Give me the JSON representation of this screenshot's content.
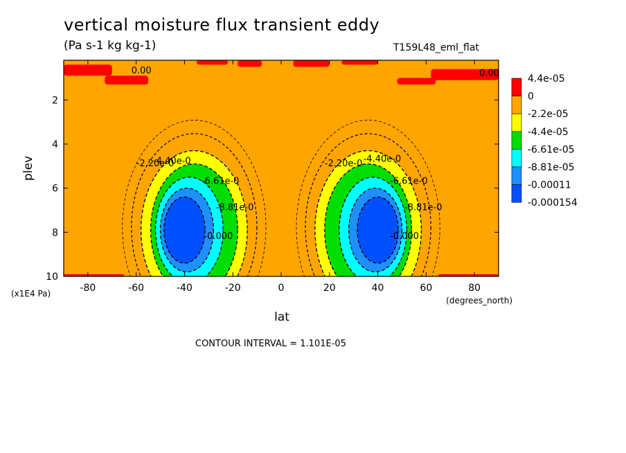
{
  "title": "vertical moisture flux transient eddy",
  "units": "(Pa s-1 kg kg-1)",
  "run_id": "T159L48_eml_flat",
  "contour_note": "CONTOUR INTERVAL = 1.101E-05",
  "chart_data": {
    "type": "heatmap",
    "xlabel": "lat",
    "ylabel": "plev",
    "x_unit": "(degrees_north)",
    "y_unit": "(x1E4 Pa)",
    "xlim": [
      -90,
      90
    ],
    "ylim": [
      10,
      0.2
    ],
    "x_ticks": [
      -80,
      -60,
      -40,
      -20,
      0,
      20,
      40,
      60,
      80
    ],
    "x_tick_labels": [
      "-80",
      "-60",
      "-40",
      "-20",
      "0",
      "20",
      "40",
      "60",
      "80"
    ],
    "y_ticks": [
      2,
      4,
      6,
      8,
      10
    ],
    "y_tick_labels": [
      "2",
      "4",
      "6",
      "8",
      "10"
    ],
    "colorbar": {
      "colors": [
        "#ff0000",
        "#ffa500",
        "#ffff00",
        "#00dd00",
        "#00ffff",
        "#1e90ff",
        "#0050ff"
      ],
      "labels": [
        "4.4e-05",
        "0",
        "-2.2e-05",
        "-4.4e-05",
        "-6.61e-05",
        "-8.81e-05",
        "-0.00011",
        "-0.000154"
      ]
    },
    "background_level": 1,
    "cells": [
      {
        "center_lat": -36,
        "center_plev": 7.9,
        "dlat": 22,
        "dlev": 3.6,
        "level": 2
      },
      {
        "center_lat": -36,
        "center_plev": 7.9,
        "dlat": 18,
        "dlev": 3.0,
        "level": 3
      },
      {
        "center_lat": -38,
        "center_plev": 7.9,
        "dlat": 14,
        "dlev": 2.4,
        "level": 4
      },
      {
        "center_lat": -39,
        "center_plev": 7.9,
        "dlat": 11,
        "dlev": 1.9,
        "level": 5
      },
      {
        "center_lat": -40,
        "center_plev": 7.9,
        "dlat": 8.5,
        "dlev": 1.5,
        "level": 6
      },
      {
        "center_lat": 36,
        "center_plev": 7.9,
        "dlat": 22,
        "dlev": 3.6,
        "level": 2
      },
      {
        "center_lat": 36,
        "center_plev": 7.9,
        "dlat": 18,
        "dlev": 3.0,
        "level": 3
      },
      {
        "center_lat": 38,
        "center_plev": 7.9,
        "dlat": 14,
        "dlev": 2.4,
        "level": 4
      },
      {
        "center_lat": 39,
        "center_plev": 7.9,
        "dlat": 11,
        "dlev": 1.9,
        "level": 5
      },
      {
        "center_lat": 40,
        "center_plev": 7.9,
        "dlat": 8.5,
        "dlev": 1.5,
        "level": 6
      }
    ],
    "positive_regions": [
      {
        "lat_from": -90,
        "lat_to": -70,
        "plev_from": 0.4,
        "plev_to": 0.9
      },
      {
        "lat_from": -73,
        "lat_to": -55,
        "plev_from": 0.9,
        "plev_to": 1.3
      },
      {
        "lat_from": -35,
        "lat_to": -22,
        "plev_from": 0.2,
        "plev_to": 0.4
      },
      {
        "lat_from": -18,
        "lat_to": -8,
        "plev_from": 0.2,
        "plev_to": 0.5
      },
      {
        "lat_from": 5,
        "lat_to": 20,
        "plev_from": 0.2,
        "plev_to": 0.5
      },
      {
        "lat_from": 25,
        "lat_to": 40,
        "plev_from": 0.2,
        "plev_to": 0.4
      },
      {
        "lat_from": 48,
        "lat_to": 64,
        "plev_from": 1.0,
        "plev_to": 1.3
      },
      {
        "lat_from": 62,
        "lat_to": 90,
        "plev_from": 0.6,
        "plev_to": 1.1
      },
      {
        "lat_from": -90,
        "lat_to": -65,
        "plev_from": 9.9,
        "plev_to": 10
      },
      {
        "lat_from": 65,
        "lat_to": 90,
        "plev_from": 9.9,
        "plev_to": 10
      }
    ],
    "contour_labels": [
      {
        "text": "0.00",
        "lat": -62,
        "plev": 0.8
      },
      {
        "text": "0.00",
        "lat": 82,
        "plev": 0.9
      },
      {
        "text": "-2.20e-0",
        "lat": -60,
        "plev": 5.0
      },
      {
        "text": "-4.40e-0",
        "lat": -53,
        "plev": 4.9
      },
      {
        "text": "-6.61e-0",
        "lat": -33,
        "plev": 5.8
      },
      {
        "text": "-8.81e-0",
        "lat": -27,
        "plev": 7.0
      },
      {
        "text": "-0.000",
        "lat": -32,
        "plev": 8.3
      },
      {
        "text": "-2.20e-0",
        "lat": 18,
        "plev": 5.0
      },
      {
        "text": "-4.40e-0",
        "lat": 34,
        "plev": 4.8
      },
      {
        "text": "-6.61e-0",
        "lat": 45,
        "plev": 5.8
      },
      {
        "text": "-8.81e-0",
        "lat": 51,
        "plev": 7.0
      },
      {
        "text": "-0.000",
        "lat": 45,
        "plev": 8.3
      }
    ]
  }
}
